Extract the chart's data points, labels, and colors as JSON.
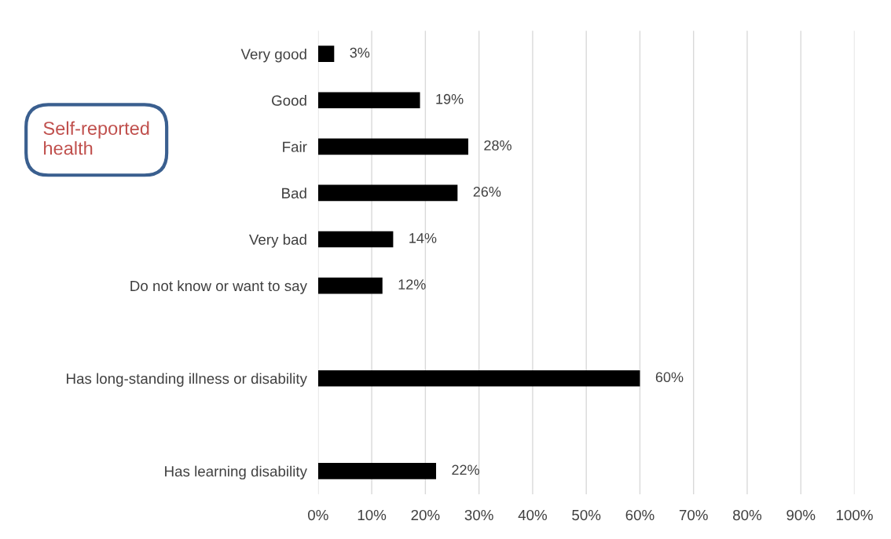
{
  "chart_data": {
    "type": "bar",
    "orientation": "horizontal",
    "categories": [
      "Very good",
      "Good",
      "Fair",
      "Bad",
      "Very bad",
      "Do not know or want to say",
      null,
      "Has long-standing illness or disability",
      null,
      "Has learning disability"
    ],
    "values": [
      3,
      19,
      28,
      26,
      14,
      12,
      null,
      60,
      null,
      22
    ],
    "value_labels": [
      "3%",
      "19%",
      "28%",
      "26%",
      "14%",
      "12%",
      null,
      "60%",
      null,
      "22%"
    ],
    "color": "#000000",
    "xlim": [
      0,
      100
    ],
    "xticks": [
      {
        "value": 0,
        "label": "0%"
      },
      {
        "value": 10,
        "label": "10%"
      },
      {
        "value": 20,
        "label": "20%"
      },
      {
        "value": 30,
        "label": "30%"
      },
      {
        "value": 40,
        "label": "40%"
      },
      {
        "value": 50,
        "label": "50%"
      },
      {
        "value": 60,
        "label": "60%"
      },
      {
        "value": 70,
        "label": "70%"
      },
      {
        "value": 80,
        "label": "80%"
      },
      {
        "value": 90,
        "label": "90%"
      },
      {
        "value": 100,
        "label": "100%"
      }
    ],
    "grid": "x",
    "legend": false,
    "annotations": [
      "Self-reported\nhealth"
    ]
  }
}
